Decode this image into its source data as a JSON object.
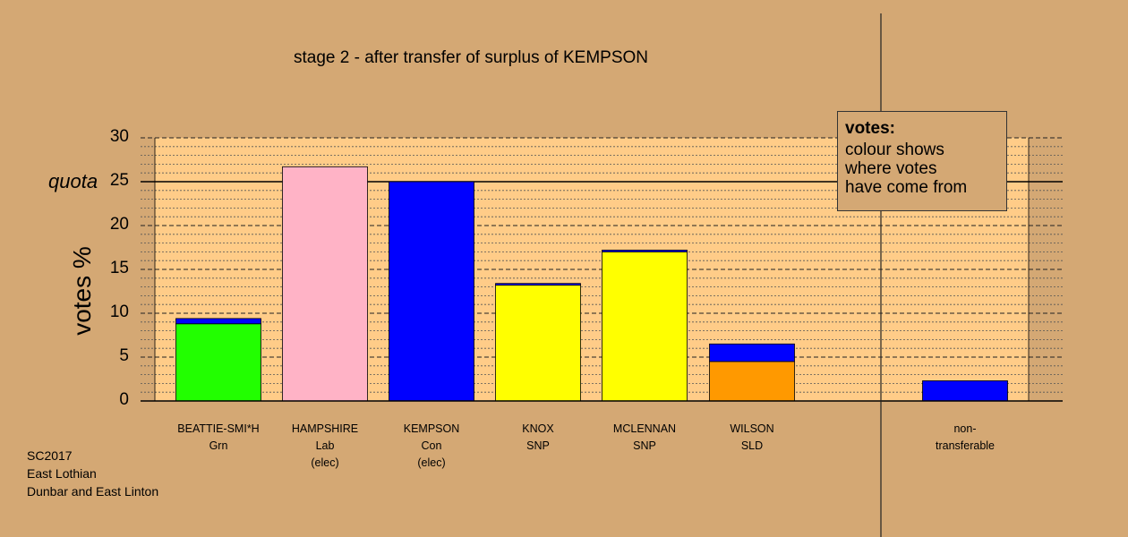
{
  "chart_data": {
    "type": "bar",
    "title": "stage 2 - after transfer of surplus of KEMPSON",
    "ylabel": "votes %",
    "ylim": [
      0,
      30
    ],
    "yticks": [
      0,
      5,
      10,
      15,
      20,
      25,
      30
    ],
    "quota": {
      "label": "quota",
      "value": 25
    },
    "grid": "dotted every 1, dashed every 5",
    "bars": [
      {
        "line1": "BEATTIE-SMI*H",
        "line2": "Grn",
        "line3": "",
        "segments": [
          {
            "value": 8.8,
            "color": "#22ff00"
          },
          {
            "value": 0.6,
            "color": "#0000ff"
          }
        ]
      },
      {
        "line1": "HAMPSHIRE",
        "line2": "Lab",
        "line3": "(elec)",
        "segments": [
          {
            "value": 26.7,
            "color": "#ffb3c6"
          }
        ]
      },
      {
        "line1": "KEMPSON",
        "line2": "Con",
        "line3": "(elec)",
        "segments": [
          {
            "value": 25.0,
            "color": "#0000ff"
          }
        ]
      },
      {
        "line1": "KNOX",
        "line2": "SNP",
        "line3": "",
        "segments": [
          {
            "value": 13.2,
            "color": "#ffff00"
          },
          {
            "value": 0.2,
            "color": "#0000ff"
          }
        ]
      },
      {
        "line1": "MCLENNAN",
        "line2": "SNP",
        "line3": "",
        "segments": [
          {
            "value": 17.0,
            "color": "#ffff00"
          },
          {
            "value": 0.2,
            "color": "#0000ff"
          }
        ]
      },
      {
        "line1": "WILSON",
        "line2": "SLD",
        "line3": "",
        "segments": [
          {
            "value": 4.5,
            "color": "#ff9900"
          },
          {
            "value": 2.0,
            "color": "#0000ff"
          }
        ]
      }
    ],
    "nontransferable": {
      "line1": "non-",
      "line2": "transferable",
      "value": 2.3,
      "color": "#0000ff"
    },
    "legend": {
      "title": "votes:",
      "line1": "colour shows",
      "line2": "where votes",
      "line3": "have come from",
      "placement": "top-right"
    }
  },
  "caption": {
    "line1": "SC2017",
    "line2": "East Lothian",
    "line3": "Dunbar and East Linton"
  },
  "colors": {
    "background": "#d4a874",
    "plot_area": "#ffcc88"
  }
}
